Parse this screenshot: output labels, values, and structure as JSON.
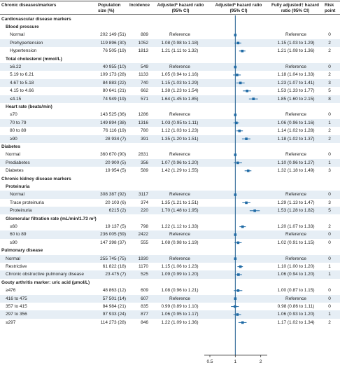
{
  "headers": {
    "label": "Chronic diseases/markers",
    "population": "Population size (%)",
    "incidence": "Incidence",
    "adjusted": "Adjusted* hazard ratio (95% CI)",
    "plot": "Adjusted* hazard ratio (95% CI)",
    "fully": "Fully adjusted† hazard ratio (95% CI)",
    "risk": "Risk point"
  },
  "axis": {
    "ticks": [
      "0.5",
      "1",
      "2"
    ],
    "tick_values": [
      0.5,
      1,
      2
    ],
    "min": 0.5,
    "max": 2.3,
    "log_scale": true
  },
  "colors": {
    "marker": "#1f6aa5",
    "row_shade": "#e6eef5"
  },
  "rows": [
    {
      "type": "section",
      "label": "Cardiovascular disease markers"
    },
    {
      "type": "sub",
      "label": "Blood pressure"
    },
    {
      "type": "data",
      "level": 2,
      "label": "Normal",
      "population": "202 149 (51)",
      "incidence": "889",
      "adjusted": "Reference",
      "fully": "Reference",
      "risk": "0",
      "hr": 1
    },
    {
      "type": "data",
      "level": 2,
      "label": "Prehypertension",
      "population": "119 896 (30)",
      "incidence": "1052",
      "adjusted": "1.08 (0.98 to 1.18)",
      "fully": "1.15 (1.03 to 1.29)",
      "risk": "2",
      "hr": 1.08,
      "lo": 0.98,
      "hi": 1.18
    },
    {
      "type": "data",
      "level": 2,
      "label": "Hypertension",
      "population": "76 505 (19)",
      "incidence": "1813",
      "adjusted": "1.21 (1.11 to 1.32)",
      "fully": "1.21 (1.08 to 1.36)",
      "risk": "2",
      "hr": 1.21,
      "lo": 1.11,
      "hi": 1.32
    },
    {
      "type": "sub",
      "label": "Total cholesterol (mmol/L)"
    },
    {
      "type": "data",
      "level": 2,
      "label": "≥6.22",
      "population": "40 955 (10)",
      "incidence": "549",
      "adjusted": "Reference",
      "fully": "Reference",
      "risk": "0",
      "hr": 1
    },
    {
      "type": "data",
      "level": 2,
      "label": "5.19 to 6.21",
      "population": "109 173 (28)",
      "incidence": "1133",
      "adjusted": "1.05 (0.94 to 1.16)",
      "fully": "1.18 (1.04 to 1.33)",
      "risk": "2",
      "hr": 1.05,
      "lo": 0.94,
      "hi": 1.16
    },
    {
      "type": "data",
      "level": 2,
      "label": "4.67 to 5.18",
      "population": "84 883 (22)",
      "incidence": "740",
      "adjusted": "1.15 (1.03 to 1.29)",
      "fully": "1.23 (1.07 to 1.41)",
      "risk": "3",
      "hr": 1.15,
      "lo": 1.03,
      "hi": 1.29
    },
    {
      "type": "data",
      "level": 2,
      "label": "4.15 to 4.66",
      "population": "80 641 (21)",
      "incidence": "662",
      "adjusted": "1.38 (1.23 to 1.54)",
      "fully": "1.53 (1.33 to 1.77)",
      "risk": "5",
      "hr": 1.38,
      "lo": 1.23,
      "hi": 1.54
    },
    {
      "type": "data",
      "level": 2,
      "label": "≤4.15",
      "population": "74 949 (19)",
      "incidence": "571",
      "adjusted": "1.64 (1.45 to 1.85)",
      "fully": "1.85 (1.60 to 2.15)",
      "risk": "8",
      "hr": 1.64,
      "lo": 1.45,
      "hi": 1.85
    },
    {
      "type": "sub",
      "label": "Heart rate (beats/min)"
    },
    {
      "type": "data",
      "level": 2,
      "label": "≤70",
      "population": "143 525 (36)",
      "incidence": "1286",
      "adjusted": "Reference",
      "fully": "Reference",
      "risk": "0",
      "hr": 1
    },
    {
      "type": "data",
      "level": 2,
      "label": "70 to 79",
      "population": "149 894 (38)",
      "incidence": "1316",
      "adjusted": "1.03 (0.95 to 1.11)",
      "fully": "1.06 (0.96 to 1.16)",
      "risk": "1",
      "hr": 1.03,
      "lo": 0.95,
      "hi": 1.11
    },
    {
      "type": "data",
      "level": 2,
      "label": "80 to 89",
      "population": "76 116 (19)",
      "incidence": "780",
      "adjusted": "1.12 (1.03 to 1.23)",
      "fully": "1.14 (1.02 to 1.28)",
      "risk": "2",
      "hr": 1.12,
      "lo": 1.03,
      "hi": 1.23
    },
    {
      "type": "data",
      "level": 2,
      "label": "≥90",
      "population": "28 934 (7)",
      "incidence": "391",
      "adjusted": "1.35 (1.20 to 1.51)",
      "fully": "1.18 (1.02 to 1.37)",
      "risk": "2",
      "hr": 1.35,
      "lo": 1.2,
      "hi": 1.51
    },
    {
      "type": "section",
      "label": "Diabetes"
    },
    {
      "type": "data",
      "level": 1,
      "label": "Normal",
      "population": "360 670 (90)",
      "incidence": "2831",
      "adjusted": "Reference",
      "fully": "Reference",
      "risk": "0",
      "hr": 1
    },
    {
      "type": "data",
      "level": 1,
      "label": "Prediabetes",
      "population": "20 900 (5)",
      "incidence": "356",
      "adjusted": "1.07 (0.96 to 1.20)",
      "fully": "1.10 (0.96 to 1.27)",
      "risk": "1",
      "hr": 1.07,
      "lo": 0.96,
      "hi": 1.2
    },
    {
      "type": "data",
      "level": 1,
      "label": "Diabetes",
      "population": "19 954 (5)",
      "incidence": "589",
      "adjusted": "1.42 (1.29 to 1.55)",
      "fully": "1.32 (1.18 to 1.49)",
      "risk": "3",
      "hr": 1.42,
      "lo": 1.29,
      "hi": 1.55
    },
    {
      "type": "section",
      "label": "Chronic kidney disease markers"
    },
    {
      "type": "sub",
      "label": "Proteinuria"
    },
    {
      "type": "data",
      "level": 2,
      "label": "Normal",
      "population": "308 387 (92)",
      "incidence": "3117",
      "adjusted": "Reference",
      "fully": "Reference",
      "risk": "0",
      "hr": 1
    },
    {
      "type": "data",
      "level": 2,
      "label": "Trace proteinuria",
      "population": "20 103 (6)",
      "incidence": "374",
      "adjusted": "1.35 (1.21 to 1.51)",
      "fully": "1.29 (1.13 to 1.47)",
      "risk": "3",
      "hr": 1.35,
      "lo": 1.21,
      "hi": 1.51
    },
    {
      "type": "data",
      "level": 2,
      "label": "Proteinuria",
      "population": "6215 (2)",
      "incidence": "220",
      "adjusted": "1.70 (1.48 to 1.95)",
      "fully": "1.53 (1.28 to 1.82)",
      "risk": "5",
      "hr": 1.7,
      "lo": 1.48,
      "hi": 1.95
    },
    {
      "type": "sub",
      "label": "Glomerular filtration rate (mL/min/1.73 m²)"
    },
    {
      "type": "data",
      "level": 2,
      "label": "≤60",
      "population": "19 137 (5)",
      "incidence": "798",
      "adjusted": "1.22 (1.12 to 1.33)",
      "fully": "1.20 (1.07 to 1.33)",
      "risk": "2",
      "hr": 1.22,
      "lo": 1.12,
      "hi": 1.33
    },
    {
      "type": "data",
      "level": 2,
      "label": "60 to 89",
      "population": "236 005 (59)",
      "incidence": "2422",
      "adjusted": "Reference",
      "fully": "Reference",
      "risk": "0",
      "hr": 1
    },
    {
      "type": "data",
      "level": 2,
      "label": "≥90",
      "population": "147 398 (37)",
      "incidence": "555",
      "adjusted": "1.08 (0.98 to 1.19)",
      "fully": "1.02 (0.91 to 1.15)",
      "risk": "0",
      "hr": 1.08,
      "lo": 0.98,
      "hi": 1.19
    },
    {
      "type": "section",
      "label": "Pulmonary disease"
    },
    {
      "type": "data",
      "level": 1,
      "label": "Normal",
      "population": "255 745 (75)",
      "incidence": "1930",
      "adjusted": "Reference",
      "fully": "Reference",
      "risk": "0",
      "hr": 1
    },
    {
      "type": "data",
      "level": 1,
      "label": "Restrictive",
      "population": "61 822 (18)",
      "incidence": "1170",
      "adjusted": "1.15 (1.06 to 1.23)",
      "fully": "1.10 (1.00 to 1.20)",
      "risk": "1",
      "hr": 1.15,
      "lo": 1.06,
      "hi": 1.23
    },
    {
      "type": "data",
      "level": 1,
      "label": "Chronic obstructive pulmonary disease",
      "population": "23 475 (7)",
      "incidence": "525",
      "adjusted": "1.09 (0.99 to 1.20)",
      "fully": "1.06 (0.94 to 1.20)",
      "risk": "1",
      "hr": 1.09,
      "lo": 0.99,
      "hi": 1.2
    },
    {
      "type": "section",
      "label": "Gouty arthritis marker: uric acid (µmol/L)"
    },
    {
      "type": "data",
      "level": 1,
      "label": "≥476",
      "population": "48 863 (12)",
      "incidence": "609",
      "adjusted": "1.08 (0.96 to 1.21)",
      "fully": "1.00 (0.87 to 1.15)",
      "risk": "0",
      "hr": 1.08,
      "lo": 0.96,
      "hi": 1.21
    },
    {
      "type": "data",
      "level": 1,
      "label": "416 to 475",
      "population": "57 501 (14)",
      "incidence": "607",
      "adjusted": "Reference",
      "fully": "Reference",
      "risk": "0",
      "hr": 1
    },
    {
      "type": "data",
      "level": 1,
      "label": "357 to 415",
      "population": "84 984 (21)",
      "incidence": "835",
      "adjusted": "0.99 (0.89 to 1.10)",
      "fully": "0.98 (0.86 to 1.11)",
      "risk": "0",
      "hr": 0.99,
      "lo": 0.89,
      "hi": 1.1
    },
    {
      "type": "data",
      "level": 1,
      "label": "297 to 356",
      "population": "97 933 (24)",
      "incidence": "877",
      "adjusted": "1.06 (0.95 to 1.17)",
      "fully": "1.06 (0.93 to 1.20)",
      "risk": "1",
      "hr": 1.06,
      "lo": 0.95,
      "hi": 1.17
    },
    {
      "type": "data",
      "level": 1,
      "label": "≤297",
      "population": "114 273 (28)",
      "incidence": "846",
      "adjusted": "1.22 (1.09 to 1.36)",
      "fully": "1.17 (1.02 to 1.34)",
      "risk": "2",
      "hr": 1.22,
      "lo": 1.09,
      "hi": 1.36
    }
  ]
}
